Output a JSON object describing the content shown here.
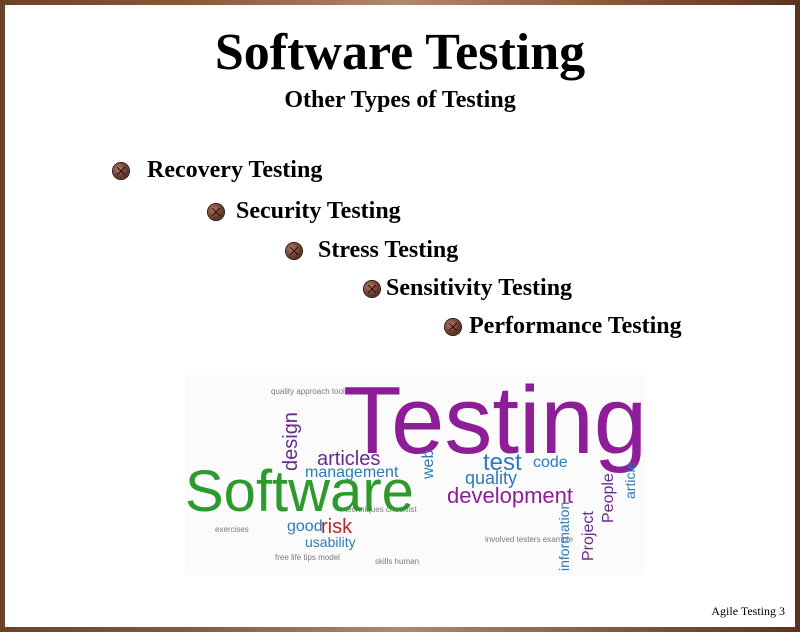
{
  "slide": {
    "title": "Software Testing",
    "subtitle": "Other Types of Testing",
    "bullets": [
      {
        "label": "Recovery Testing"
      },
      {
        "label": "Security Testing"
      },
      {
        "label": "Stress Testing"
      },
      {
        "label": "Sensitivity Testing"
      },
      {
        "label": "Performance Testing"
      }
    ],
    "footer": "Agile Testing 3"
  },
  "word_cloud": {
    "words": {
      "testing": "Testing",
      "software": "Software",
      "development": "development",
      "test": "test",
      "quality": "quality",
      "articles": "articles",
      "management": "management",
      "design": "design",
      "risk": "risk",
      "good": "good",
      "usability": "usability",
      "code": "code",
      "people": "People",
      "project": "Project",
      "information": "information",
      "article": "article",
      "web": "web"
    },
    "colors": {
      "purple": "#8e1d98",
      "green": "#2e9a2e",
      "blue": "#2e7ab8",
      "red": "#b02a2a"
    }
  },
  "colors": {
    "frame": "#8a5a3c",
    "bullet": "#6a3a2e",
    "text": "#000000"
  },
  "icons": {
    "bullet": "bullet-ball-icon"
  }
}
